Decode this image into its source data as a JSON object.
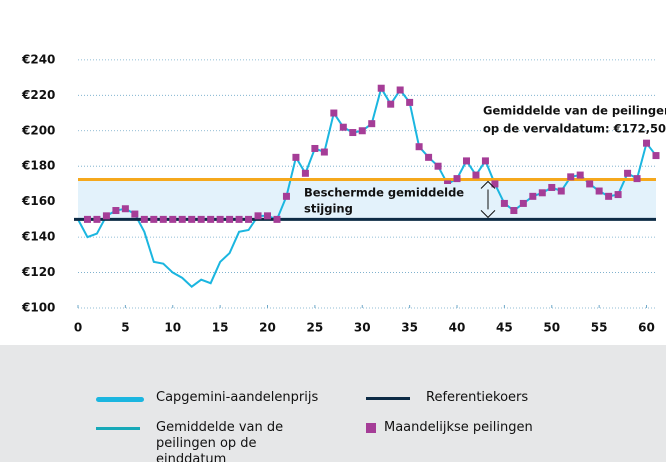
{
  "chart_data": {
    "type": "line",
    "xlim": [
      0,
      61
    ],
    "xticks": [
      0,
      5,
      10,
      15,
      20,
      25,
      30,
      35,
      40,
      45,
      50,
      55,
      60
    ],
    "ylim": [
      100,
      245
    ],
    "yticks": [
      {
        "value": 100,
        "label": "€100"
      },
      {
        "value": 120,
        "label": "€120"
      },
      {
        "value": 140,
        "label": "€140"
      },
      {
        "value": 160,
        "label": "€160"
      },
      {
        "value": 180,
        "label": "€180"
      },
      {
        "value": 200,
        "label": "€200"
      },
      {
        "value": 220,
        "label": "€220"
      },
      {
        "value": 240,
        "label": "€240"
      }
    ],
    "grid": true,
    "series": [
      {
        "name": "Capgemini-aandelenprijs",
        "color": "#1bb6e0",
        "x": [
          0,
          1,
          2,
          3,
          4,
          5,
          6,
          7,
          8,
          9,
          10,
          11,
          12,
          13,
          14,
          15,
          16,
          17,
          18,
          19,
          20,
          21,
          22,
          23,
          24,
          25,
          26,
          27,
          28,
          29,
          30,
          31,
          32,
          33,
          34,
          35,
          36,
          37,
          38,
          39,
          40,
          41,
          42,
          43,
          44,
          45,
          46,
          47,
          48,
          49,
          50,
          51,
          52,
          53,
          54,
          55,
          56,
          57,
          58,
          59,
          60,
          61
        ],
        "values": [
          150,
          140,
          142,
          152,
          155,
          156,
          153,
          143,
          126,
          125,
          120,
          117,
          112,
          116,
          114,
          126,
          131,
          143,
          144,
          152,
          152,
          150,
          163,
          185,
          176,
          190,
          188,
          210,
          202,
          199,
          200,
          204,
          224,
          215,
          223,
          216,
          191,
          185,
          180,
          170,
          173,
          183,
          175,
          183,
          170,
          159,
          155,
          159,
          163,
          165,
          168,
          166,
          174,
          175,
          170,
          166,
          163,
          164,
          176,
          173,
          193,
          186
        ]
      },
      {
        "name": "Referentiekoers",
        "color": "#0d2b45",
        "value": 150
      },
      {
        "name": "Gemiddelde van de peilingen op de einddatum",
        "color": "#f5a81c",
        "legend_color": "#17a9b8",
        "value": 172.5
      },
      {
        "name": "Maandelijkse peilingen",
        "color": "#a53d97",
        "x": [
          1,
          2,
          3,
          4,
          5,
          6,
          7,
          8,
          9,
          10,
          11,
          12,
          13,
          14,
          15,
          16,
          17,
          18,
          19,
          20,
          21,
          22,
          23,
          24,
          25,
          26,
          27,
          28,
          29,
          30,
          31,
          32,
          33,
          34,
          35,
          36,
          37,
          38,
          39,
          40,
          41,
          42,
          43,
          44,
          45,
          46,
          47,
          48,
          49,
          50,
          51,
          52,
          53,
          54,
          55,
          56,
          57,
          58,
          59,
          60,
          61
        ],
        "values": [
          150,
          150,
          152,
          155,
          156,
          153,
          150,
          150,
          150,
          150,
          150,
          150,
          150,
          150,
          150,
          150,
          150,
          150,
          152,
          152,
          150,
          163,
          185,
          176,
          190,
          188,
          210,
          202,
          199,
          200,
          204,
          224,
          215,
          223,
          216,
          191,
          185,
          180,
          170,
          173,
          183,
          175,
          183,
          170,
          159,
          155,
          159,
          163,
          165,
          168,
          166,
          174,
          175,
          170,
          166,
          163,
          164,
          176,
          173,
          193,
          186
        ]
      }
    ],
    "annotations": [
      {
        "lines": [
          "Beschermde gemiddelde",
          "stijging"
        ]
      },
      {
        "lines": [
          "Gemiddelde van de peilingen",
          "op de vervaldatum: €172,50"
        ]
      }
    ]
  }
}
